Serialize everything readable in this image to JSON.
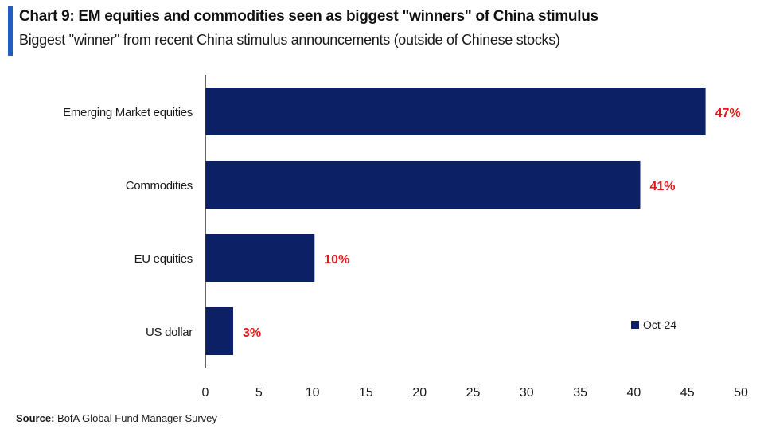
{
  "header": {
    "title": "Chart 9: EM equities and commodities seen as biggest \"winners\" of China stimulus",
    "subtitle": "Biggest \"winner\" from recent China stimulus announcements (outside of Chinese stocks)"
  },
  "footer": {
    "source_label": "Source:",
    "source_text": " BofA Global Fund Manager Survey"
  },
  "colors": {
    "bar": "#0c2066",
    "data_label": "#e8161b",
    "accent": "#1f5fbf",
    "axis": "#333333"
  },
  "chart_data": {
    "type": "bar",
    "orientation": "horizontal",
    "categories": [
      "Emerging Market equities",
      "Commodities",
      "EU equities",
      "US dollar"
    ],
    "series": [
      {
        "name": "Oct-24",
        "values": [
          46.7,
          40.6,
          10.2,
          2.6
        ],
        "labels": [
          "47%",
          "41%",
          "10%",
          "3%"
        ]
      }
    ],
    "xlim": [
      0,
      50
    ],
    "xticks": [
      "0",
      "5",
      "10",
      "15",
      "20",
      "25",
      "30",
      "35",
      "40",
      "45",
      "50"
    ],
    "grid": false,
    "legend": "bottom-right"
  }
}
